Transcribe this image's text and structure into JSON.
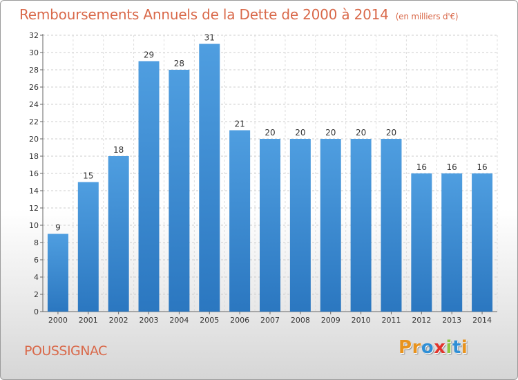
{
  "chart_data": {
    "type": "bar",
    "title": "Remboursements Annuels de la Dette de 2000 à 2014",
    "subtitle": "(en milliers d'€)",
    "categories": [
      "2000",
      "2001",
      "2002",
      "2003",
      "2004",
      "2005",
      "2006",
      "2007",
      "2008",
      "2009",
      "2010",
      "2011",
      "2012",
      "2013",
      "2014"
    ],
    "values": [
      9,
      15,
      18,
      29,
      28,
      31,
      21,
      20,
      20,
      20,
      20,
      20,
      16,
      16,
      16
    ],
    "data_labels": [
      "9",
      "15",
      "18",
      "29",
      "28",
      "31",
      "21",
      "20",
      "20",
      "20",
      "20",
      "20",
      "16",
      "16",
      "16"
    ],
    "ylim": [
      0,
      32
    ],
    "yticks": [
      0,
      2,
      4,
      6,
      8,
      10,
      12,
      14,
      16,
      18,
      20,
      22,
      24,
      26,
      28,
      30,
      32
    ],
    "grid": true,
    "bar_color": "#4f9ee0",
    "bar_color_dark": "#2b77c0"
  },
  "footer": {
    "town": "POUSSIGNAC",
    "logo_letters": [
      "P",
      "r",
      "o",
      "x",
      "i",
      "t",
      "i"
    ],
    "logo_colors": [
      "#e8931e",
      "#e8931e",
      "#2f8fd6",
      "#e2342c",
      "#8ec63f",
      "#2f8fd6",
      "#e8931e"
    ]
  }
}
